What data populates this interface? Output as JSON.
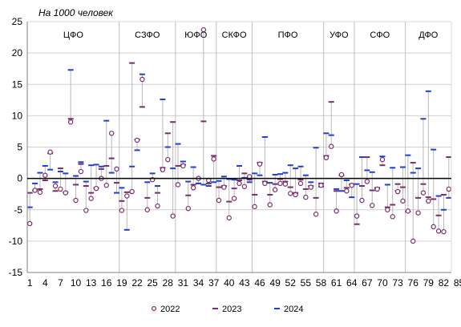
{
  "chart_data": {
    "type": "scatter",
    "title": "На 1000 человек",
    "ylim": [
      -15,
      25
    ],
    "yticks": [
      -15,
      -10,
      -5,
      0,
      5,
      10,
      15,
      20,
      25
    ],
    "x_tick_labels": [
      "1",
      "4",
      "7",
      "10",
      "13",
      "16",
      "19",
      "22",
      "25",
      "28",
      "31",
      "34",
      "37",
      "40",
      "43",
      "46",
      "49",
      "52",
      "55",
      "58",
      "61",
      "64",
      "67",
      "70",
      "73",
      "76",
      "79",
      "82",
      "85"
    ],
    "regions": [
      "ЦФО",
      "СЗФО",
      "ЮФО",
      "СКФО",
      "ПФО",
      "УФО",
      "СФО",
      "ДФО"
    ],
    "region_boundaries_after": [
      18,
      29,
      37,
      44,
      58,
      64,
      74
    ],
    "series": [
      {
        "name": "2022",
        "color": "#7b2d6b",
        "values": [
          -7.2,
          -1.9,
          -2.2,
          0.5,
          4.2,
          -1.2,
          -1.7,
          -2.3,
          9.0,
          -3.5,
          1.1,
          -5.1,
          -3.2,
          -1.6,
          0.0,
          -1.1,
          7.2,
          1.5,
          -5.1,
          -2.8,
          -2.1,
          6.1,
          15.8,
          -5.0,
          -0.2,
          -4.4,
          1.4,
          3.0,
          -6.0,
          -1.0,
          2.0,
          -4.8,
          -1.5,
          0.0,
          23.7,
          -0.3,
          3.1,
          -3.5,
          -1.4,
          -6.3,
          -3.2,
          -0.8,
          -1.3,
          0.3,
          -4.5,
          2.3,
          -0.8,
          -4.2,
          -1.8,
          -0.8,
          -0.9,
          -2.4,
          -2.6,
          -0.8,
          -3.0,
          -1.4,
          -5.7,
          -1.1,
          3.3,
          5.1,
          -5.2,
          0.6,
          -2.0,
          -1.1,
          -6.0,
          -3.5,
          -0.5,
          -4.3,
          -1.7,
          3.0,
          -5.0,
          -6.1,
          -2.1,
          -3.6,
          -5.2,
          -10.0,
          -5.5,
          -2.3,
          -3.6,
          -7.7,
          -8.4,
          -8.5,
          -1.7
        ]
      },
      {
        "name": "2023",
        "color": "#7b2d6b",
        "values": [
          -2.3,
          -1.9,
          -1.7,
          -0.3,
          4.0,
          -2.0,
          1.6,
          -2.2,
          9.5,
          -1.0,
          2.3,
          -1.2,
          -2.3,
          -1.5,
          1.5,
          2.0,
          3.2,
          -0.7,
          -3.6,
          -2.2,
          18.4,
          6.2,
          11.4,
          -3.1,
          0.0,
          -2.3,
          1.7,
          7.2,
          9.0,
          2.0,
          2.2,
          -2.7,
          -1.0,
          -0.8,
          9.1,
          -0.8,
          3.6,
          -1.4,
          -1.2,
          -3.7,
          -1.6,
          -0.3,
          0.8,
          -0.2,
          -2.6,
          2.5,
          -0.5,
          -2.6,
          -0.9,
          -0.1,
          -0.5,
          -1.4,
          -2.3,
          -0.2,
          -1.7,
          -1.2,
          -3.1,
          -0.8,
          3.6,
          12.2,
          -2.0,
          0.5,
          -1.5,
          -0.9,
          -7.3,
          -1.2,
          3.4,
          -1.9,
          -1.6,
          2.1,
          -4.6,
          -4.2,
          -0.9,
          -1.4,
          -5.3,
          2.5,
          -3.1,
          -0.9,
          -3.0,
          -3.3,
          -5.9,
          -2.6,
          3.4
        ]
      },
      {
        "name": "2024",
        "color": "#1f3fd6",
        "values": [
          -4.6,
          -0.8,
          0.9,
          2.0,
          1.4,
          -0.6,
          1.1,
          0.8,
          17.3,
          0.4,
          2.6,
          -0.5,
          2.1,
          2.2,
          1.9,
          9.2,
          0.9,
          -2.3,
          -1.5,
          -8.2,
          1.9,
          4.5,
          16.6,
          -0.6,
          0.8,
          -1.2,
          12.6,
          5.0,
          1.6,
          5.5,
          2.7,
          -0.5,
          1.8,
          -0.8,
          -1.0,
          -1.2,
          -0.6,
          -0.4,
          0.3,
          -0.1,
          -0.2,
          2.0,
          0.1,
          -0.6,
          0.8,
          0.5,
          6.6,
          -0.7,
          0.6,
          0.7,
          0.9,
          2.1,
          1.6,
          1.9,
          0.5,
          -0.6,
          4.9,
          -1.3,
          7.2,
          6.9,
          -1.7,
          -2.0,
          -0.3,
          -3.0,
          -0.9,
          3.4,
          1.3,
          1.0,
          -1.5,
          3.5,
          -1.0,
          1.7,
          -2.0,
          1.8,
          3.7,
          0.9,
          1.6,
          9.5,
          13.9,
          4.6,
          -2.8,
          -5.0,
          -3.1
        ]
      }
    ]
  }
}
